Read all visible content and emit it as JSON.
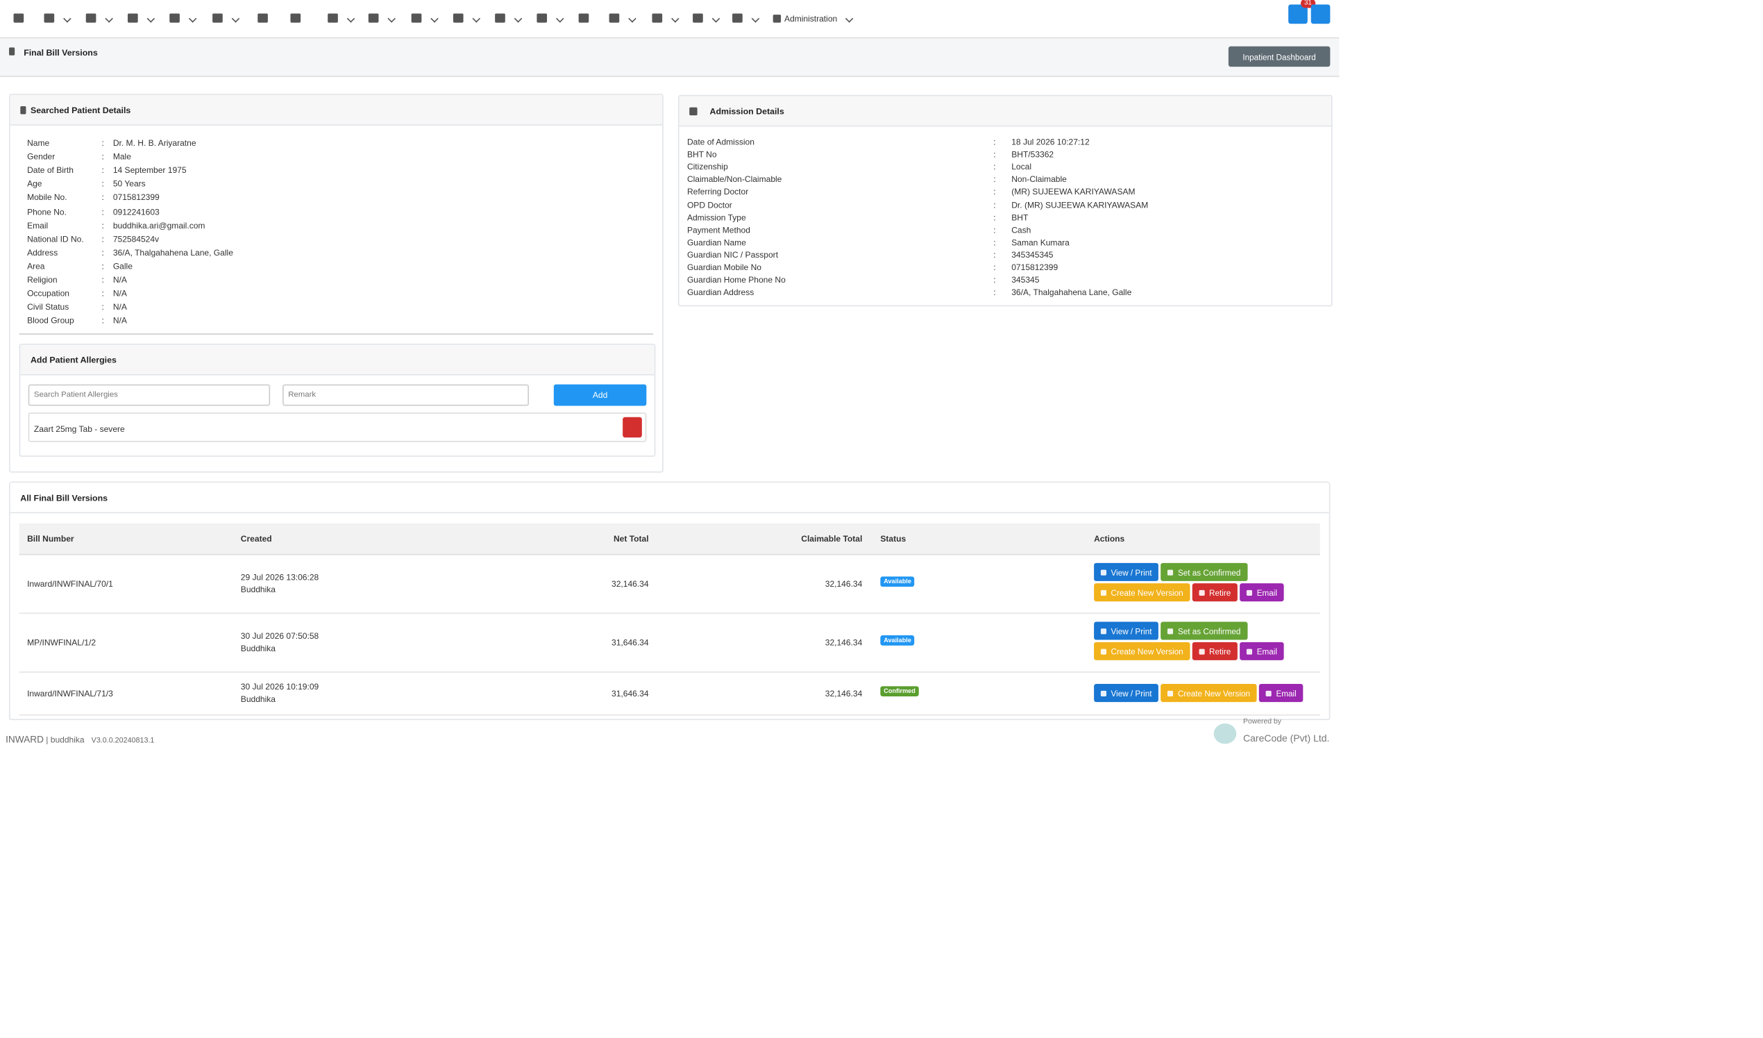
{
  "navbar": {
    "menu": "Administration",
    "notification_count": "31"
  },
  "header": {
    "title": "Final Bill Versions",
    "button": "Inpatient Dashboard"
  },
  "patient": {
    "title": "Searched Patient Details",
    "separator": ":",
    "rows": [
      [
        "Name",
        "Dr. M. H. B. Ariyaratne"
      ],
      [
        "Gender",
        "Male"
      ],
      [
        "Date of Birth",
        "14 September 1975"
      ],
      [
        "Age",
        "50 Years"
      ],
      [
        "Mobile No.",
        "0715812399"
      ],
      [
        "Phone No.",
        "0912241603"
      ],
      [
        "Email",
        "buddhika.ari@gmail.com"
      ],
      [
        "National ID No.",
        "752584524v"
      ],
      [
        "Address",
        "36/A, Thalgahahena Lane, Galle"
      ],
      [
        "Area",
        "Galle"
      ],
      [
        "Religion",
        "N/A"
      ],
      [
        "Occupation",
        "N/A"
      ],
      [
        "Civil Status",
        "N/A"
      ],
      [
        "Blood Group",
        "N/A"
      ]
    ]
  },
  "allergies": {
    "title": "Add Patient Allergies",
    "search_placeholder": "Search Patient Allergies",
    "remark_placeholder": "Remark",
    "add": "Add",
    "items": [
      "Zaart 25mg Tab - severe"
    ]
  },
  "admission": {
    "title": "Admission Details",
    "separator": ":",
    "rows": [
      [
        "Date of Admission",
        "18 Jul 2026 10:27:12"
      ],
      [
        "BHT No",
        "BHT/53362"
      ],
      [
        "Citizenship",
        "Local"
      ],
      [
        "Claimable/Non-Claimable",
        "Non-Claimable"
      ],
      [
        "Referring Doctor",
        "(MR) SUJEEWA KARIYAWASAM"
      ],
      [
        "OPD Doctor",
        "Dr. (MR) SUJEEWA KARIYAWASAM"
      ],
      [
        "Admission Type",
        "BHT"
      ],
      [
        "Payment Method",
        "Cash"
      ],
      [
        "Guardian Name",
        "Saman Kumara"
      ],
      [
        "Guardian NIC / Passport",
        "345345345"
      ],
      [
        "Guardian Mobile No",
        "0715812399"
      ],
      [
        "Guardian Home Phone No",
        "345345"
      ],
      [
        "Guardian Address",
        "36/A, Thalgahahena Lane, Galle"
      ]
    ]
  },
  "bills": {
    "title": "All Final Bill Versions",
    "columns": [
      "Bill Number",
      "Created",
      "Net Total",
      "Claimable Total",
      "Status",
      "Actions"
    ],
    "rows": [
      {
        "bill_number": "Inward/INWFINAL/70/1",
        "created": "29 Jul 2026 13:06:28",
        "created_by": "Buddhika",
        "net_total": "32,146.34",
        "claimable_total": "32,146.34",
        "status": "Available",
        "actions": [
          "View / Print",
          "Set as Confirmed",
          "Create New Version",
          "Retire",
          "Email"
        ]
      },
      {
        "bill_number": "MP/INWFINAL/1/2",
        "created": "30 Jul 2026 07:50:58",
        "created_by": "Buddhika",
        "net_total": "31,646.34",
        "claimable_total": "32,146.34",
        "status": "Available",
        "actions": [
          "View / Print",
          "Set as Confirmed",
          "Create New Version",
          "Retire",
          "Email"
        ]
      },
      {
        "bill_number": "Inward/INWFINAL/71/3",
        "created": "30 Jul 2026 10:19:09",
        "created_by": "Buddhika",
        "net_total": "31,646.34",
        "claimable_total": "32,146.34",
        "status": "Confirmed",
        "actions": [
          "View / Print",
          "Create New Version",
          "Email"
        ]
      }
    ]
  },
  "footer": {
    "app": "INWARD",
    "user": "buddhika",
    "version": "V3.0.0.20240813.1",
    "powered_by": "Powered by",
    "company": "CareCode (Pvt) Ltd."
  }
}
